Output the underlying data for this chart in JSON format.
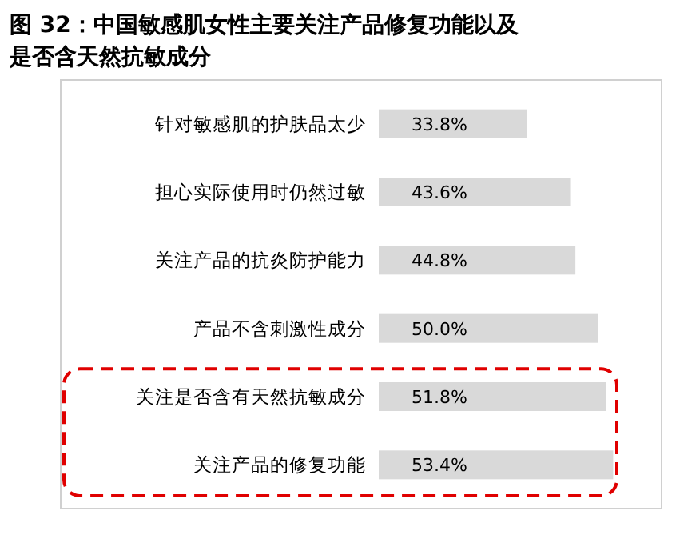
{
  "chart_data": {
    "type": "bar",
    "orientation": "horizontal",
    "relative": false,
    "title": "图 32：中国敏感肌女性主要关注产品修复功能以及是否含天然抗敏成分",
    "categories": [
      "针对敏感肌的护肤品太少",
      "担心实际使用时仍然过敏",
      "关注产品的抗炎防护能力",
      "产品不含刺激性成分",
      "关注是否含有天然抗敏成分",
      "关注产品的修复功能"
    ],
    "values": [
      33.8,
      43.6,
      44.8,
      50.0,
      51.8,
      53.4
    ],
    "value_labels": [
      "33.8%",
      "43.6%",
      "44.8%",
      "50.0%",
      "51.8%",
      "53.4%"
    ],
    "color": "#d9d9d9"
  }
}
